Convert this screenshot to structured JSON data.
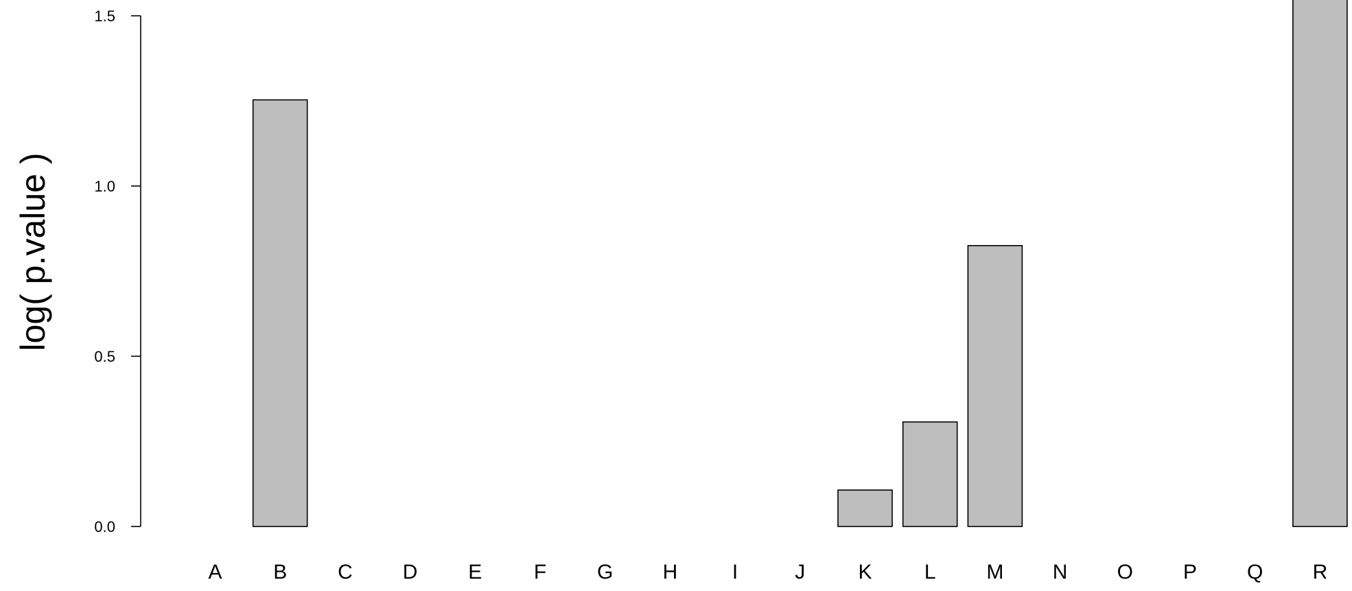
{
  "chart_data": {
    "type": "bar",
    "title": "",
    "xlabel": "",
    "ylabel": "log( p.value )",
    "categories": [
      "A",
      "B",
      "C",
      "D",
      "E",
      "F",
      "G",
      "H",
      "I",
      "J",
      "K",
      "L",
      "M",
      "N",
      "O",
      "P",
      "Q",
      "R"
    ],
    "values": [
      0,
      1.253,
      0,
      0,
      0,
      0,
      0,
      0,
      0,
      0,
      0.107,
      0.307,
      0.825,
      0,
      0,
      0,
      0,
      1.65
    ],
    "ylim": [
      0,
      1.5
    ],
    "yticks": [
      0.0,
      0.5,
      1.0,
      1.5
    ],
    "ytick_labels": [
      "0.0",
      "0.5",
      "1.0",
      "1.5"
    ],
    "grid": false,
    "legend": "none",
    "colors": {
      "bar_fill": "#bebebe",
      "bar_stroke": "#000000",
      "axis": "#000000"
    }
  }
}
